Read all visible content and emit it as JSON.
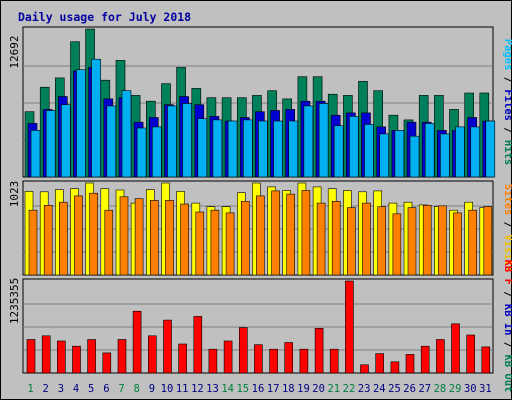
{
  "chart_data": {
    "type": "bar",
    "title": "Daily usage for July 2018",
    "categories": [
      "1",
      "2",
      "3",
      "4",
      "5",
      "6",
      "7",
      "8",
      "9",
      "10",
      "11",
      "12",
      "13",
      "14",
      "15",
      "16",
      "17",
      "18",
      "19",
      "20",
      "21",
      "22",
      "23",
      "24",
      "25",
      "26",
      "27",
      "28",
      "29",
      "30",
      "31"
    ],
    "weekend_days": [
      "1",
      "7",
      "8",
      "14",
      "15",
      "21",
      "22",
      "28",
      "29"
    ],
    "panels": [
      {
        "id": "hits",
        "ymax_label": "12692",
        "ylim": [
          0,
          12692
        ],
        "legend": [
          {
            "text": "Pages",
            "color": "#00c0ff"
          },
          {
            "text": "Files",
            "color": "#0000c0"
          },
          {
            "text": "Hits",
            "color": "#007f50"
          }
        ],
        "series": [
          {
            "name": "Hits",
            "color": "#00805a",
            "values": [
              5600,
              7700,
              8500,
              11600,
              12692,
              8300,
              10000,
              7000,
              6500,
              8000,
              9400,
              7600,
              6800,
              6800,
              6800,
              7000,
              7400,
              6700,
              8600,
              8600,
              7100,
              7000,
              8200,
              7400,
              5300,
              4900,
              7000,
              7000,
              5800,
              7200,
              7200
            ]
          },
          {
            "name": "Files",
            "color": "#0000d0",
            "values": [
              4600,
              5800,
              6900,
              9100,
              9400,
              6700,
              6800,
              4700,
              5100,
              6200,
              6900,
              6200,
              5200,
              4800,
              5100,
              5600,
              5700,
              5800,
              6500,
              6500,
              5300,
              5500,
              5500,
              4300,
              4000,
              4700,
              4700,
              4000,
              4000,
              5100,
              4800
            ]
          },
          {
            "name": "Pages",
            "color": "#00b0f0",
            "values": [
              4000,
              5700,
              6200,
              9200,
              10100,
              6100,
              7400,
              4200,
              4300,
              6100,
              6300,
              5000,
              4900,
              4800,
              4900,
              4800,
              4800,
              4800,
              6100,
              6300,
              4400,
              5200,
              4500,
              3700,
              4000,
              3500,
              4600,
              3700,
              4300,
              4300,
              4800
            ]
          }
        ]
      },
      {
        "id": "visits",
        "ymax_label": "1023",
        "ylim": [
          0,
          1023
        ],
        "legend": [
          {
            "text": "Sites",
            "color": "#ff8000"
          },
          {
            "text": "Visits",
            "color": "#f0c000"
          }
        ],
        "series": [
          {
            "name": "Visits",
            "color": "#ffff00",
            "values": [
              930,
              925,
              950,
              960,
              1023,
              960,
              945,
              800,
              950,
              1023,
              930,
              800,
              760,
              760,
              915,
              1023,
              980,
              940,
              1023,
              980,
              960,
              940,
              925,
              935,
              800,
              810,
              780,
              760,
              720,
              810,
              750
            ]
          },
          {
            "name": "Sites",
            "color": "#ff8000",
            "values": [
              720,
              775,
              810,
              880,
              910,
              720,
              870,
              850,
              830,
              830,
              790,
              700,
              720,
              690,
              820,
              880,
              935,
              900,
              940,
              800,
              820,
              750,
              800,
              760,
              680,
              750,
              775,
              770,
              690,
              720,
              760
            ]
          }
        ]
      },
      {
        "id": "kbytes",
        "ymax_label": "1235355",
        "ylim": [
          0,
          1235355
        ],
        "legend": [
          {
            "text": "KB F",
            "color": "#ff0000"
          },
          {
            "text": "KB In",
            "color": "#0000c0"
          },
          {
            "text": "KB Out",
            "color": "#007f50"
          }
        ],
        "series": [
          {
            "name": "KB F",
            "color": "#ff0000",
            "values": [
              450000,
              500000,
              430000,
              360000,
              450000,
              270000,
              450000,
              830000,
              500000,
              710000,
              390000,
              760000,
              320000,
              430000,
              610000,
              380000,
              320000,
              410000,
              320000,
              600000,
              320000,
              1235355,
              110000,
              260000,
              150000,
              250000,
              360000,
              450000,
              660000,
              510000,
              350000
            ]
          }
        ]
      }
    ]
  }
}
